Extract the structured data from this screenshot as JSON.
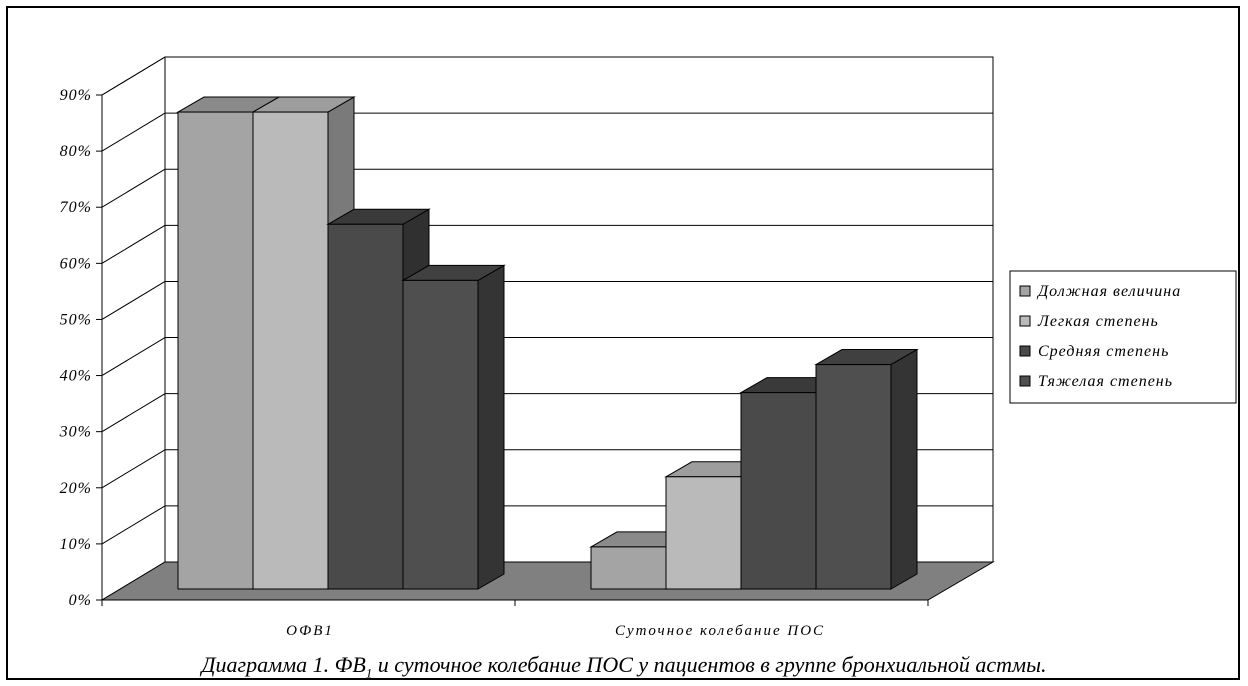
{
  "chart_data": {
    "type": "bar",
    "three_d": true,
    "categories": [
      "ОФВ1",
      "Суточное колебание ПОС"
    ],
    "series": [
      {
        "name": "Должная величина",
        "values": [
          85,
          7.5
        ],
        "color": "#a4a4a4",
        "side": "#6c6c6c",
        "top": "#8a8a8a"
      },
      {
        "name": "Легкая степень",
        "values": [
          85,
          20
        ],
        "color": "#bababa",
        "side": "#7a7a7a",
        "top": "#9d9d9d"
      },
      {
        "name": "Средняя степень",
        "values": [
          65,
          35
        ],
        "color": "#4a4a4a",
        "side": "#303030",
        "top": "#3a3a3a"
      },
      {
        "name": "Тяжелая степень",
        "values": [
          55,
          40
        ],
        "color": "#4f4f4f",
        "side": "#343434",
        "top": "#404040"
      }
    ],
    "yticks": [
      "0%",
      "10%",
      "20%",
      "30%",
      "40%",
      "50%",
      "60%",
      "70%",
      "80%",
      "90%"
    ],
    "ylim": [
      0,
      90
    ],
    "grid": true,
    "legend": "right",
    "floor_color": "#808080"
  },
  "caption": {
    "prefix": "Диаграмма 1. ФВ",
    "sub": "1",
    "suffix": " и суточное колебание ПОС у пациентов в группе бронхиальной астмы."
  }
}
